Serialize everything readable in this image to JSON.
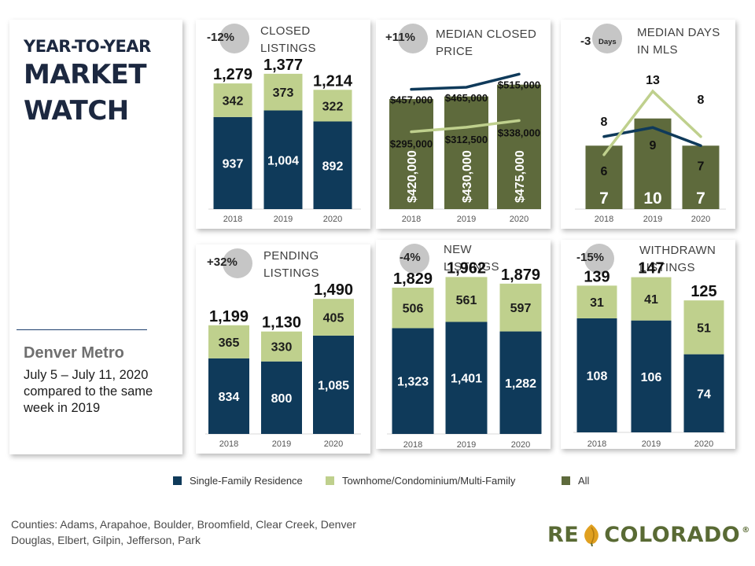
{
  "header": {
    "title_line1": "YEAR-TO-YEAR",
    "title_line2": "MARKET",
    "title_line3": "WATCH",
    "region": "Denver Metro",
    "date_range": "July 5 – July 11, 2020 compared to the same week in 2019"
  },
  "colors": {
    "single_family": "#0f3a5a",
    "townhome": "#bfd08d",
    "all": "#5e6a3c",
    "badge": "#c6c6c6"
  },
  "charts": [
    {
      "title": "CLOSED\nLISTINGS",
      "change": "-12%"
    },
    {
      "title": "MEDIAN CLOSED\nPRICE",
      "change": "+11%"
    },
    {
      "title": "MEDIAN DAYS\nIN MLS",
      "change": "-3",
      "change_suffix": "Days"
    },
    {
      "title": "PENDING\nLISTINGS",
      "change": "+32%"
    },
    {
      "title": "NEW\nLISTINGS",
      "change": "-4%"
    },
    {
      "title": "WITHDRAWN\nLISTINGS",
      "change": "-15%"
    }
  ],
  "chart_data": [
    {
      "type": "bar",
      "stacked": true,
      "categories": [
        "2018",
        "2019",
        "2020"
      ],
      "series": [
        {
          "name": "Single-Family Residence",
          "values": [
            937,
            1004,
            892
          ]
        },
        {
          "name": "Townhome/Condominium/Multi-Family",
          "values": [
            342,
            373,
            322
          ]
        }
      ],
      "totals": [
        "1,279",
        "1,377",
        "1,214"
      ],
      "labels": {
        "single": [
          "937",
          "1,004",
          "892"
        ],
        "town": [
          "342",
          "373",
          "322"
        ]
      },
      "ylim": [
        0,
        1600
      ]
    },
    {
      "type": "bar",
      "categories": [
        "2018",
        "2019",
        "2020"
      ],
      "series": [
        {
          "name": "All",
          "values": [
            420000,
            430000,
            475000
          ]
        },
        {
          "name": "Single-Family Residence",
          "values": [
            457000,
            465000,
            515000
          ]
        },
        {
          "name": "Townhome/Condominium/Multi-Family",
          "values": [
            295000,
            312500,
            338000
          ]
        }
      ],
      "labels": {
        "all": [
          "$420,000",
          "$430,000",
          "$475,000"
        ],
        "single": [
          "$457,000",
          "$465,000",
          "$515,000"
        ],
        "town": [
          "$295,000",
          "$312,500",
          "$338,000"
        ]
      },
      "ylim": [
        0,
        600000
      ]
    },
    {
      "type": "bar",
      "categories": [
        "2018",
        "2019",
        "2020"
      ],
      "series": [
        {
          "name": "All",
          "values": [
            7,
            10,
            7
          ]
        },
        {
          "name": "Single-Family Residence",
          "values": [
            8,
            9,
            7
          ]
        },
        {
          "name": "Townhome/Condominium/Multi-Family",
          "values": [
            6,
            13,
            8
          ]
        }
      ],
      "labels": {
        "all": [
          "7",
          "10",
          "7"
        ],
        "single": [
          "8",
          "9",
          "7"
        ],
        "town": [
          "6",
          "13",
          "8"
        ]
      },
      "ylim": [
        0,
        17
      ]
    },
    {
      "type": "bar",
      "stacked": true,
      "categories": [
        "2018",
        "2019",
        "2020"
      ],
      "series": [
        {
          "name": "Single-Family Residence",
          "values": [
            834,
            800,
            1085
          ]
        },
        {
          "name": "Townhome/Condominium/Multi-Family",
          "values": [
            365,
            330,
            405
          ]
        }
      ],
      "totals": [
        "1,199",
        "1,130",
        "1,490"
      ],
      "labels": {
        "single": [
          "834",
          "800",
          "1,085"
        ],
        "town": [
          "365",
          "330",
          "405"
        ]
      },
      "ylim": [
        0,
        1700
      ]
    },
    {
      "type": "bar",
      "stacked": true,
      "categories": [
        "2018",
        "2019",
        "2020"
      ],
      "series": [
        {
          "name": "Single-Family Residence",
          "values": [
            1323,
            1401,
            1282
          ]
        },
        {
          "name": "Townhome/Condominium/Multi-Family",
          "values": [
            506,
            561,
            597
          ]
        }
      ],
      "totals": [
        "1,829",
        "1,962",
        "1,879"
      ],
      "labels": {
        "single": [
          "1,323",
          "1,401",
          "1,282"
        ],
        "town": [
          "506",
          "561",
          "597"
        ]
      },
      "ylim": [
        0,
        2300
      ]
    },
    {
      "type": "bar",
      "stacked": true,
      "categories": [
        "2018",
        "2019",
        "2020"
      ],
      "series": [
        {
          "name": "Single-Family Residence",
          "values": [
            108,
            106,
            74
          ]
        },
        {
          "name": "Townhome/Condominium/Multi-Family",
          "values": [
            31,
            41,
            51
          ]
        }
      ],
      "totals": [
        "139",
        "147",
        "125"
      ],
      "labels": {
        "single": [
          "108",
          "106",
          "74"
        ],
        "town": [
          "31",
          "41",
          "51"
        ]
      },
      "ylim": [
        0,
        175
      ]
    }
  ],
  "legend": {
    "items": [
      "Single-Family Residence",
      "Townhome/Condominium/Multi-Family",
      "All"
    ]
  },
  "footer": {
    "counties": "Counties:  Adams, Arapahoe, Boulder, Broomfield, Clear Creek, Denver\nDouglas, Elbert, Gilpin, Jefferson, Park",
    "logo_left": "RE",
    "logo_right": "COLORADO",
    "logo_mark": "®"
  }
}
